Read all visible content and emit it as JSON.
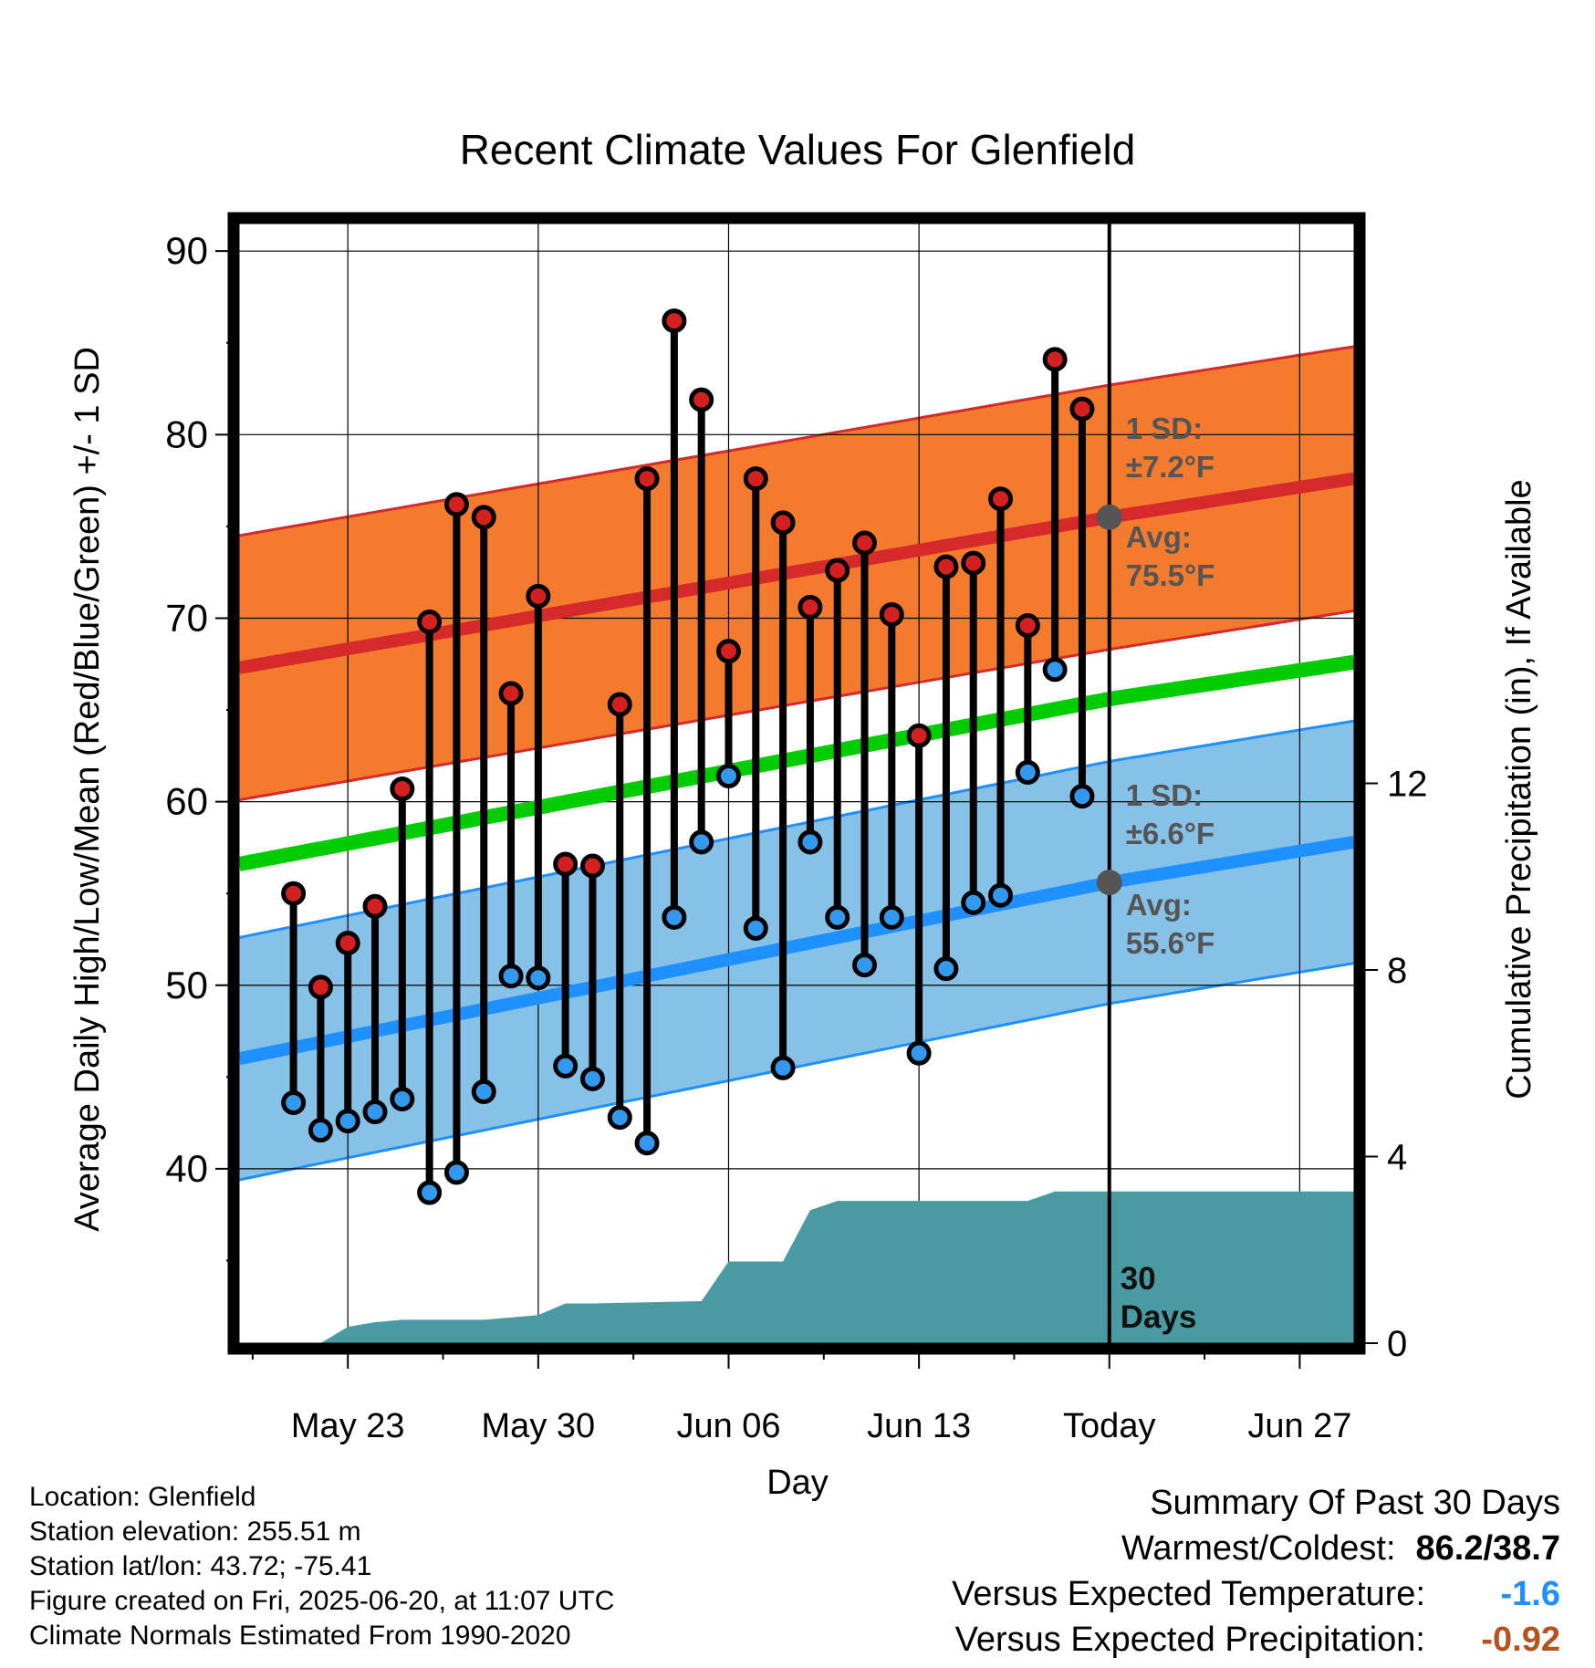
{
  "title": "Recent Climate Values For Glenfield",
  "y_left_label": "Average Daily High/Low/Mean (Red/Blue/Green) +/- 1 SD",
  "y_right_label": "Cumulative Precipitation (in), If Available",
  "x_label": "Day",
  "x_ticks": [
    "May 23",
    "May 30",
    "Jun 06",
    "Jun 13",
    "Today",
    "Jun 27"
  ],
  "y_left_ticks": [
    "40",
    "50",
    "60",
    "70",
    "80",
    "90"
  ],
  "y_right_ticks": [
    "0",
    "4",
    "8",
    "12"
  ],
  "annotations": {
    "high_sd_line1": "1 SD:",
    "high_sd_line2": "±7.2°F",
    "high_avg_line1": "Avg:",
    "high_avg_line2": "75.5°F",
    "low_sd_line1": "1 SD:",
    "low_sd_line2": "±6.6°F",
    "low_avg_line1": "Avg:",
    "low_avg_line2": "55.6°F",
    "days_line1": "30",
    "days_line2": "Days"
  },
  "info": {
    "location": "Location: Glenfield",
    "elevation": "Station elevation: 255.51 m",
    "latlon": "Station lat/lon: 43.72; -75.41",
    "created": "Figure created on Fri, 2025-06-20, at 11:07 UTC",
    "normals": "Climate Normals Estimated From 1990-2020"
  },
  "summary": {
    "heading": "Summary Of Past 30 Days",
    "warm_cold_label": "Warmest/Coldest:",
    "warm_cold_value": "86.2/38.7",
    "temp_label": "Versus Expected Temperature:",
    "temp_value": "-1.6",
    "precip_label": "Versus Expected Precipitation:",
    "precip_value": "-0.92"
  },
  "colors": {
    "high_band": "#f47a2e",
    "high_line": "#d62a2a",
    "low_band": "#86c1e8",
    "low_line": "#1e90ff",
    "mean_line": "#00cc00",
    "precip": "#4a9aa3",
    "high_marker": "#d42020",
    "low_marker": "#3399ee",
    "annotation": "#555555",
    "temp_value": "#1e90ff",
    "precip_value": "#b5531e"
  },
  "chart_data": {
    "type": "line",
    "x_range": [
      "2025-05-19",
      "2025-06-29"
    ],
    "today": "2025-06-20",
    "y_left_range": [
      30.5,
      91.5
    ],
    "y_right_range": [
      0,
      24
    ],
    "x_ticks_dates": [
      "2025-05-23",
      "2025-05-30",
      "2025-06-06",
      "2025-06-13",
      "2025-06-20",
      "2025-06-27"
    ],
    "daily_dates": [
      "2025-05-21",
      "2025-05-22",
      "2025-05-23",
      "2025-05-24",
      "2025-05-25",
      "2025-05-26",
      "2025-05-27",
      "2025-05-28",
      "2025-05-29",
      "2025-05-30",
      "2025-05-31",
      "2025-06-01",
      "2025-06-02",
      "2025-06-03",
      "2025-06-04",
      "2025-06-05",
      "2025-06-06",
      "2025-06-07",
      "2025-06-08",
      "2025-06-09",
      "2025-06-10",
      "2025-06-11",
      "2025-06-12",
      "2025-06-13",
      "2025-06-14",
      "2025-06-15",
      "2025-06-16",
      "2025-06-17",
      "2025-06-18",
      "2025-06-19"
    ],
    "series": [
      {
        "name": "High",
        "values": [
          55.0,
          49.9,
          52.3,
          54.3,
          60.7,
          69.8,
          76.2,
          75.5,
          65.9,
          71.2,
          56.6,
          56.5,
          65.3,
          77.6,
          86.2,
          81.9,
          68.2,
          77.6,
          75.2,
          70.6,
          72.6,
          74.1,
          70.2,
          63.6,
          72.8,
          73.0,
          76.5,
          69.6,
          84.1,
          81.4
        ]
      },
      {
        "name": "Low",
        "values": [
          43.6,
          42.1,
          42.6,
          43.1,
          43.8,
          38.7,
          39.8,
          44.2,
          50.5,
          50.4,
          45.6,
          44.9,
          42.8,
          41.4,
          53.7,
          57.8,
          61.4,
          53.1,
          45.5,
          57.8,
          53.7,
          51.1,
          53.7,
          46.3,
          50.9,
          54.5,
          54.9,
          61.6,
          67.2,
          60.3
        ]
      }
    ],
    "normals": {
      "dates": [
        "2025-05-19",
        "2025-06-20",
        "2025-06-29"
      ],
      "high_mean": [
        67.3,
        75.5,
        77.6
      ],
      "high_sd": 7.2,
      "low_mean": [
        46.0,
        55.6,
        57.8
      ],
      "low_sd": 6.6,
      "mean": [
        56.6,
        65.6,
        67.6
      ]
    },
    "precip_cumulative": {
      "dates": [
        "2025-05-21",
        "2025-05-22",
        "2025-05-23",
        "2025-05-24",
        "2025-05-25",
        "2025-05-28",
        "2025-05-29",
        "2025-05-30",
        "2025-05-31",
        "2025-06-01",
        "2025-06-05",
        "2025-06-06",
        "2025-06-07",
        "2025-06-08",
        "2025-06-09",
        "2025-06-10",
        "2025-06-17",
        "2025-06-18",
        "2025-06-29"
      ],
      "values": [
        0.0,
        0.0,
        0.35,
        0.45,
        0.5,
        0.5,
        0.55,
        0.6,
        0.85,
        0.85,
        0.9,
        1.75,
        1.75,
        1.75,
        2.85,
        3.05,
        3.05,
        3.25,
        3.25
      ]
    }
  }
}
